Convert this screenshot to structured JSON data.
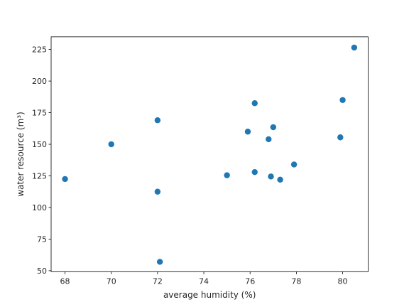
{
  "chart_data": {
    "type": "scatter",
    "title": "",
    "xlabel": "average humidity (%)",
    "ylabel": "water resource (m³)",
    "xlim": [
      67.4,
      81.1
    ],
    "ylim": [
      49.2,
      235.0
    ],
    "xticks": [
      68,
      70,
      72,
      74,
      76,
      78,
      80
    ],
    "yticks": [
      50,
      75,
      100,
      125,
      150,
      175,
      200,
      225
    ],
    "grid": false,
    "color": "#1f77b4",
    "points": [
      {
        "x": 68.0,
        "y": 122.5
      },
      {
        "x": 70.0,
        "y": 150.0
      },
      {
        "x": 72.0,
        "y": 169.0
      },
      {
        "x": 72.0,
        "y": 112.5
      },
      {
        "x": 72.1,
        "y": 57.0
      },
      {
        "x": 75.0,
        "y": 125.5
      },
      {
        "x": 75.9,
        "y": 160.0
      },
      {
        "x": 76.2,
        "y": 182.5
      },
      {
        "x": 76.2,
        "y": 128.0
      },
      {
        "x": 76.8,
        "y": 154.0
      },
      {
        "x": 76.9,
        "y": 124.5
      },
      {
        "x": 77.0,
        "y": 163.5
      },
      {
        "x": 77.3,
        "y": 122.0
      },
      {
        "x": 77.9,
        "y": 134.0
      },
      {
        "x": 79.9,
        "y": 155.5
      },
      {
        "x": 80.0,
        "y": 185.0
      },
      {
        "x": 80.5,
        "y": 226.5
      }
    ]
  }
}
